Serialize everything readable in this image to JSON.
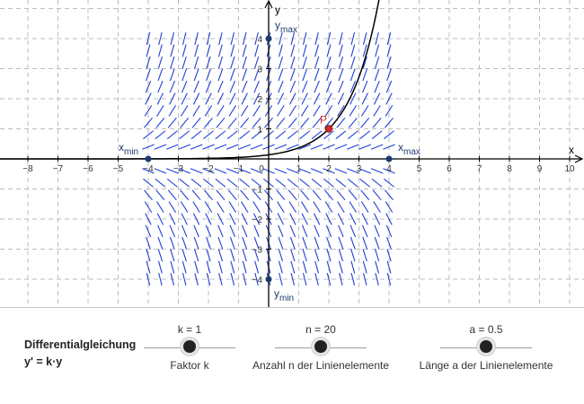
{
  "graph": {
    "x_axis_label": "x",
    "y_axis_label": "y",
    "x_ticks": [
      -8,
      -7,
      -6,
      -5,
      -4,
      -3,
      -2,
      -1,
      0,
      1,
      2,
      3,
      4,
      5,
      6,
      7,
      8,
      9,
      10
    ],
    "y_ticks": [
      -4,
      -3,
      -2,
      -1,
      1,
      2,
      3,
      4
    ],
    "x_range": [
      -9,
      10.4
    ],
    "y_range": [
      -4.9,
      5.3
    ],
    "grid": true,
    "points": {
      "xmin": {
        "label_main": "x",
        "label_sub": "min",
        "x": -4,
        "y": 0
      },
      "xmax": {
        "label_main": "x",
        "label_sub": "max",
        "x": 4,
        "y": 0
      },
      "ymin": {
        "label_main": "y",
        "label_sub": "min",
        "x": 0,
        "y": -4
      },
      "ymax": {
        "label_main": "y",
        "label_sub": "max",
        "x": 0,
        "y": 4
      },
      "P": {
        "label": "P",
        "x": 2,
        "y": 1
      }
    },
    "colors": {
      "field": "#1f3fd8",
      "curve": "#000000",
      "point_P": "#d62b2b",
      "axis_points": "#1c3b6e",
      "grid": "#bdbdbd",
      "axis": "#000000"
    },
    "field": {
      "k": 1,
      "n": 20,
      "a": 0.5,
      "x_min": -4,
      "x_max": 4,
      "y_min": -4,
      "y_max": 4
    }
  },
  "controls": {
    "title_line1": "Differentialgleichung",
    "title_line2": "y' = k·y",
    "sliders": [
      {
        "value_label": "k = 1",
        "caption": "Faktor k",
        "position": 0.5
      },
      {
        "value_label": "n = 20",
        "caption": "Anzahl n der Linienelemente",
        "position": 0.5
      },
      {
        "value_label": "a = 0.5",
        "caption": "Länge a der Linienelemente",
        "position": 0.5
      }
    ]
  }
}
